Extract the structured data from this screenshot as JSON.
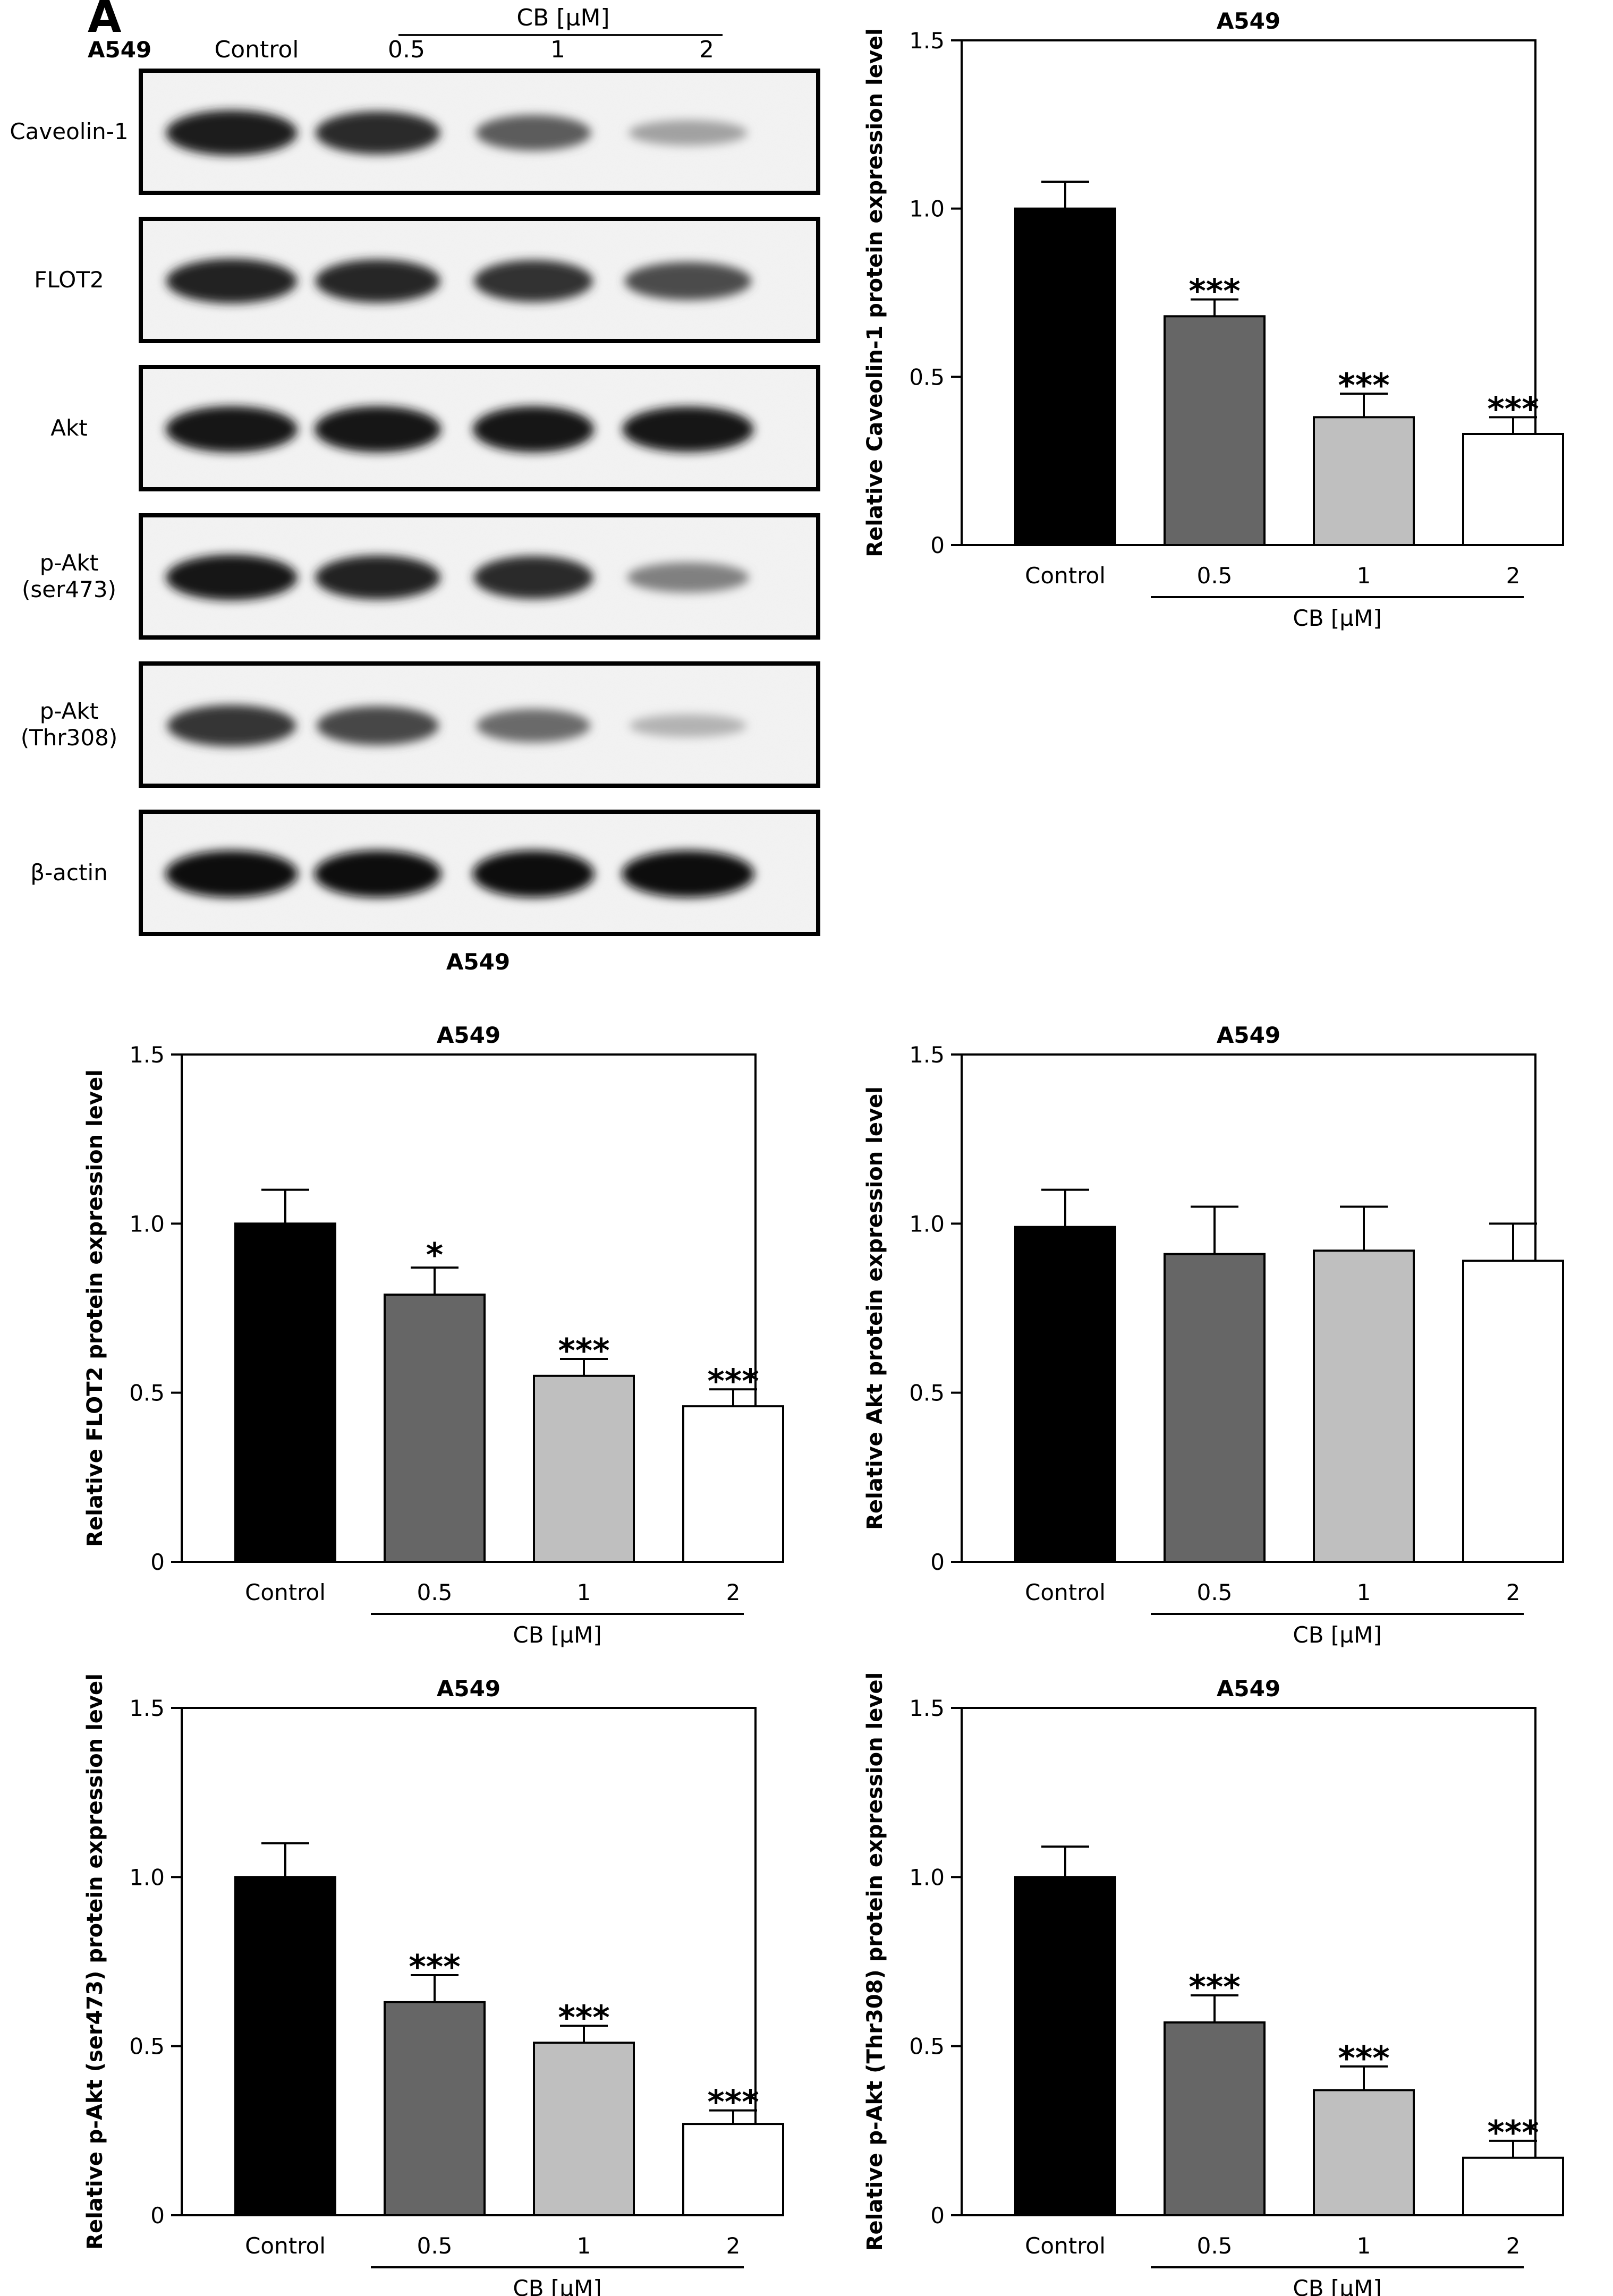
{
  "figure": {
    "panel_label": "A",
    "blot": {
      "cell_line": "A549",
      "bottom_label": "A549",
      "control_label": "Control",
      "treatment_group_label": "CB [µM]",
      "dose_labels": [
        "0.5",
        "1",
        "2"
      ],
      "rows": [
        {
          "label": "Caveolin-1",
          "band_intensity": [
            0.92,
            0.85,
            0.62,
            0.3
          ]
        },
        {
          "label": "FLOT2",
          "band_intensity": [
            0.9,
            0.86,
            0.82,
            0.7
          ]
        },
        {
          "label": "Akt",
          "band_intensity": [
            0.95,
            0.95,
            0.95,
            0.93
          ]
        },
        {
          "label": "p-Akt\n(ser473)",
          "band_intensity": [
            0.93,
            0.88,
            0.85,
            0.45
          ]
        },
        {
          "label": "p-Akt\n(Thr308)",
          "band_intensity": [
            0.8,
            0.72,
            0.55,
            0.22
          ]
        },
        {
          "label": "β-actin",
          "band_intensity": [
            0.98,
            0.98,
            0.98,
            0.98
          ]
        }
      ]
    }
  },
  "chart_data": [
    {
      "type": "bar",
      "title": "A549",
      "ylabel": "Relative Caveolin-1 protein expression level",
      "xlabel": "CB [µM]",
      "categories": [
        "Control",
        "0.5",
        "1",
        "2"
      ],
      "values": [
        1.0,
        0.68,
        0.38,
        0.33
      ],
      "errors": [
        0.08,
        0.05,
        0.07,
        0.05
      ],
      "significance": [
        "",
        "***",
        "***",
        "***"
      ],
      "ylim": [
        0,
        1.5
      ],
      "yticks": [
        "0",
        "0.5",
        "1.0",
        "1.5"
      ],
      "bar_colors": [
        "#000000",
        "#666666",
        "#bfbfbf",
        "#ffffff"
      ]
    },
    {
      "type": "bar",
      "title": "A549",
      "ylabel": "Relative FLOT2 protein expression level",
      "xlabel": "CB [µM]",
      "categories": [
        "Control",
        "0.5",
        "1",
        "2"
      ],
      "values": [
        1.0,
        0.79,
        0.55,
        0.46
      ],
      "errors": [
        0.1,
        0.08,
        0.05,
        0.05
      ],
      "significance": [
        "",
        "*",
        "***",
        "***"
      ],
      "ylim": [
        0,
        1.5
      ],
      "yticks": [
        "0",
        "0.5",
        "1.0",
        "1.5"
      ],
      "bar_colors": [
        "#000000",
        "#666666",
        "#bfbfbf",
        "#ffffff"
      ]
    },
    {
      "type": "bar",
      "title": "A549",
      "ylabel": "Relative Akt protein expression level",
      "xlabel": "CB [µM]",
      "categories": [
        "Control",
        "0.5",
        "1",
        "2"
      ],
      "values": [
        0.99,
        0.91,
        0.92,
        0.89
      ],
      "errors": [
        0.11,
        0.14,
        0.13,
        0.11
      ],
      "significance": [
        "",
        "",
        "",
        ""
      ],
      "ylim": [
        0,
        1.5
      ],
      "yticks": [
        "0",
        "0.5",
        "1.0",
        "1.5"
      ],
      "bar_colors": [
        "#000000",
        "#666666",
        "#bfbfbf",
        "#ffffff"
      ]
    },
    {
      "type": "bar",
      "title": "A549",
      "ylabel": "Relative p-Akt (ser473) protein expression level",
      "xlabel": "CB [µM]",
      "categories": [
        "Control",
        "0.5",
        "1",
        "2"
      ],
      "values": [
        1.0,
        0.63,
        0.51,
        0.27
      ],
      "errors": [
        0.1,
        0.08,
        0.05,
        0.04
      ],
      "significance": [
        "",
        "***",
        "***",
        "***"
      ],
      "ylim": [
        0,
        1.5
      ],
      "yticks": [
        "0",
        "0.5",
        "1.0",
        "1.5"
      ],
      "bar_colors": [
        "#000000",
        "#666666",
        "#bfbfbf",
        "#ffffff"
      ]
    },
    {
      "type": "bar",
      "title": "A549",
      "ylabel": "Relative p-Akt (Thr308) protein expression level",
      "xlabel": "CB [µM]",
      "categories": [
        "Control",
        "0.5",
        "1",
        "2"
      ],
      "values": [
        1.0,
        0.57,
        0.37,
        0.17
      ],
      "errors": [
        0.09,
        0.08,
        0.07,
        0.05
      ],
      "significance": [
        "",
        "***",
        "***",
        "***"
      ],
      "ylim": [
        0,
        1.5
      ],
      "yticks": [
        "0",
        "0.5",
        "1.0",
        "1.5"
      ],
      "bar_colors": [
        "#000000",
        "#666666",
        "#bfbfbf",
        "#ffffff"
      ]
    }
  ]
}
